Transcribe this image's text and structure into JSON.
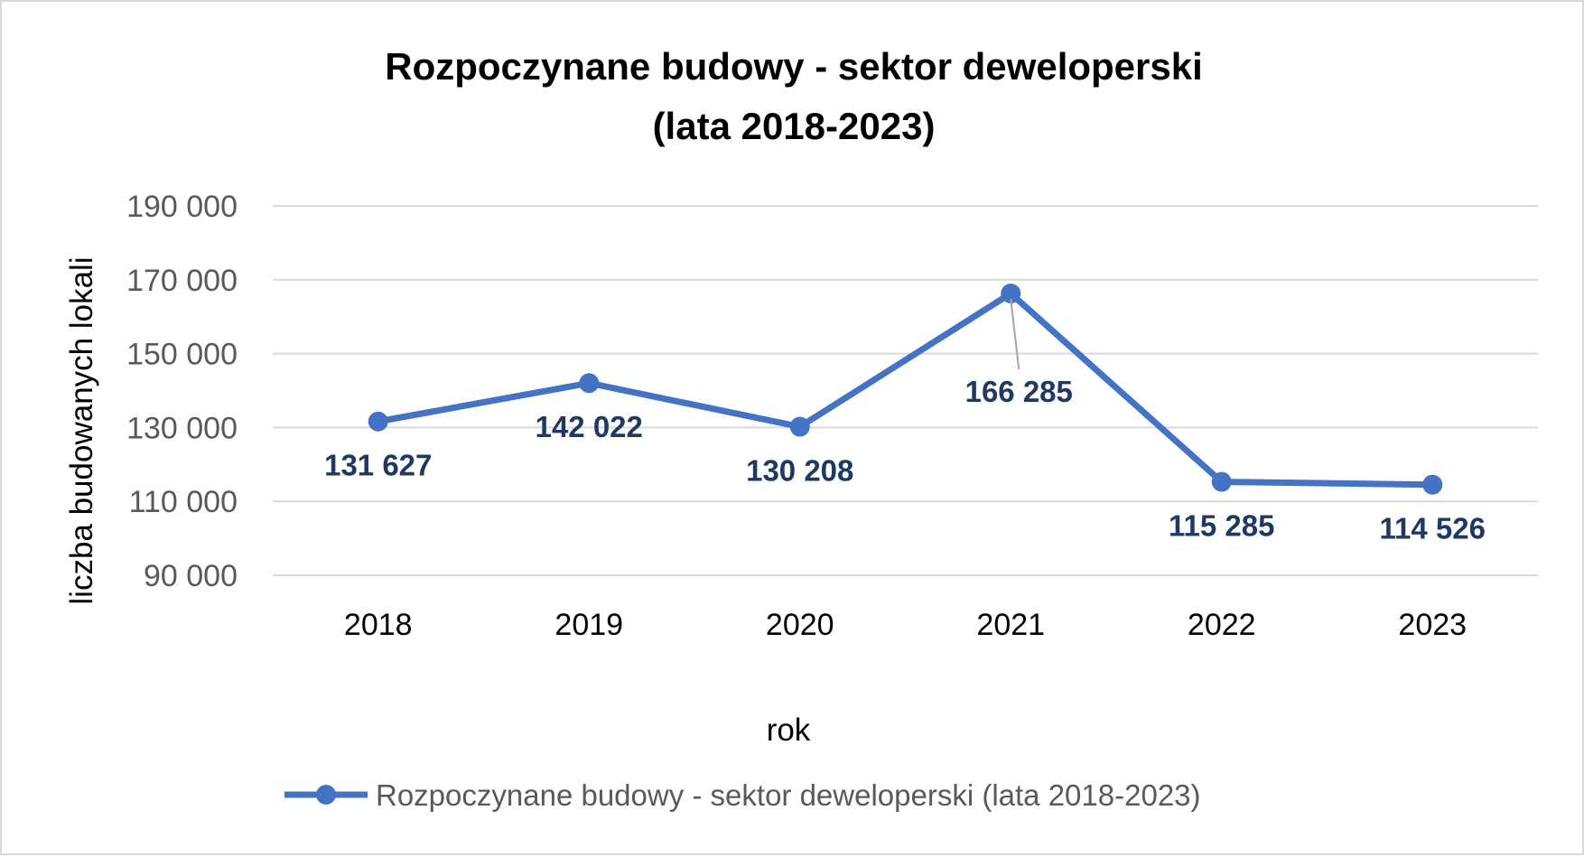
{
  "chart_data": {
    "type": "line",
    "title_line1": "Rozpoczynane budowy - sektor deweloperski",
    "title_line2": "(lata 2018-2023)",
    "xlabel": "rok",
    "ylabel": "liczba budowanych lokali",
    "categories": [
      "2018",
      "2019",
      "2020",
      "2021",
      "2022",
      "2023"
    ],
    "series": [
      {
        "name": "Rozpoczynane budowy - sektor deweloperski (lata 2018-2023)",
        "values": [
          131627,
          142022,
          130208,
          166285,
          115285,
          114526
        ],
        "labels": [
          "131 627",
          "142 022",
          "130 208",
          "166 285",
          "115 285",
          "114 526"
        ]
      }
    ],
    "ylim": [
      90000,
      190000
    ],
    "yticks": [
      90000,
      110000,
      130000,
      150000,
      170000,
      190000
    ],
    "ytick_labels": [
      "90 000",
      "110 000",
      "130 000",
      "150 000",
      "170 000",
      "190 000"
    ],
    "grid": true,
    "legend_position": "bottom",
    "colors": {
      "line": "#4472C4",
      "data_label": "#203864",
      "grid": "#d9d9d9",
      "tick": "#595959"
    }
  }
}
